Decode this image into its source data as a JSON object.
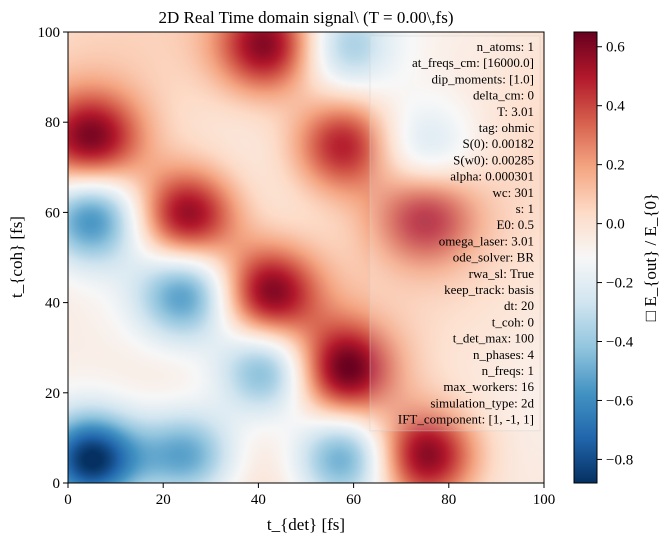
{
  "chart_data": {
    "type": "heatmap",
    "title": "2D Real Time domain signal\\ (T = 0.00\\,fs)",
    "xlabel": "t_{det} [fs]",
    "ylabel": "t_{coh} [fs]",
    "colorbar_label": "□ E_{out} / E_{0}",
    "colormap": "RdBu_r",
    "xlim": [
      0,
      100
    ],
    "ylim": [
      0,
      100
    ],
    "clim": [
      -0.88,
      0.65
    ],
    "x_ticks": [
      "0",
      "20",
      "40",
      "60",
      "80",
      "100"
    ],
    "y_ticks": [
      "0",
      "20",
      "40",
      "60",
      "80",
      "100"
    ],
    "colorbar_ticks": [
      "0.6",
      "0.4",
      "0.2",
      "0.0",
      "−0.2",
      "−0.4",
      "−0.6",
      "−0.8"
    ],
    "colorbar_tick_values": [
      0.6,
      0.4,
      0.2,
      0.0,
      -0.2,
      -0.4,
      -0.6,
      -0.8
    ],
    "grid": false,
    "features": [
      {
        "x": 42,
        "y": 97,
        "value": 0.62
      },
      {
        "x": 58,
        "y": 97,
        "value": -0.35
      },
      {
        "x": 5,
        "y": 76,
        "value": 0.6
      },
      {
        "x": 58,
        "y": 75,
        "value": 0.55
      },
      {
        "x": 75,
        "y": 74,
        "value": -0.3
      },
      {
        "x": 5,
        "y": 59,
        "value": -0.6
      },
      {
        "x": 25,
        "y": 59,
        "value": 0.65
      },
      {
        "x": 75,
        "y": 59,
        "value": 0.5
      },
      {
        "x": 25,
        "y": 42,
        "value": -0.55
      },
      {
        "x": 42,
        "y": 42,
        "value": 0.65
      },
      {
        "x": 42,
        "y": 25,
        "value": -0.55
      },
      {
        "x": 58,
        "y": 25,
        "value": 0.65
      },
      {
        "x": 5,
        "y": 5,
        "value": -0.88
      },
      {
        "x": 25,
        "y": 6,
        "value": -0.55
      },
      {
        "x": 58,
        "y": 6,
        "value": -0.55
      },
      {
        "x": 75,
        "y": 6,
        "value": 0.65
      }
    ],
    "annotations": [
      "n_atoms: 1",
      "at_freqs_cm: [16000.0]",
      "dip_moments: [1.0]",
      "delta_cm: 0",
      "T: 3.01",
      "tag: ohmic",
      "S(0): 0.00182",
      "S(w0): 0.00285",
      "alpha: 0.000301",
      "wc: 301",
      "s: 1",
      "E0: 0.5",
      "omega_laser: 3.01",
      "ode_solver: BR",
      "rwa_sl: True",
      "keep_track: basis",
      "dt: 20",
      "t_coh: 0",
      "t_det_max: 100",
      "n_phases: 4",
      "n_freqs: 1",
      "max_workers: 16",
      "simulation_type: 2d",
      "IFT_component: [1, -1, 1]"
    ]
  }
}
